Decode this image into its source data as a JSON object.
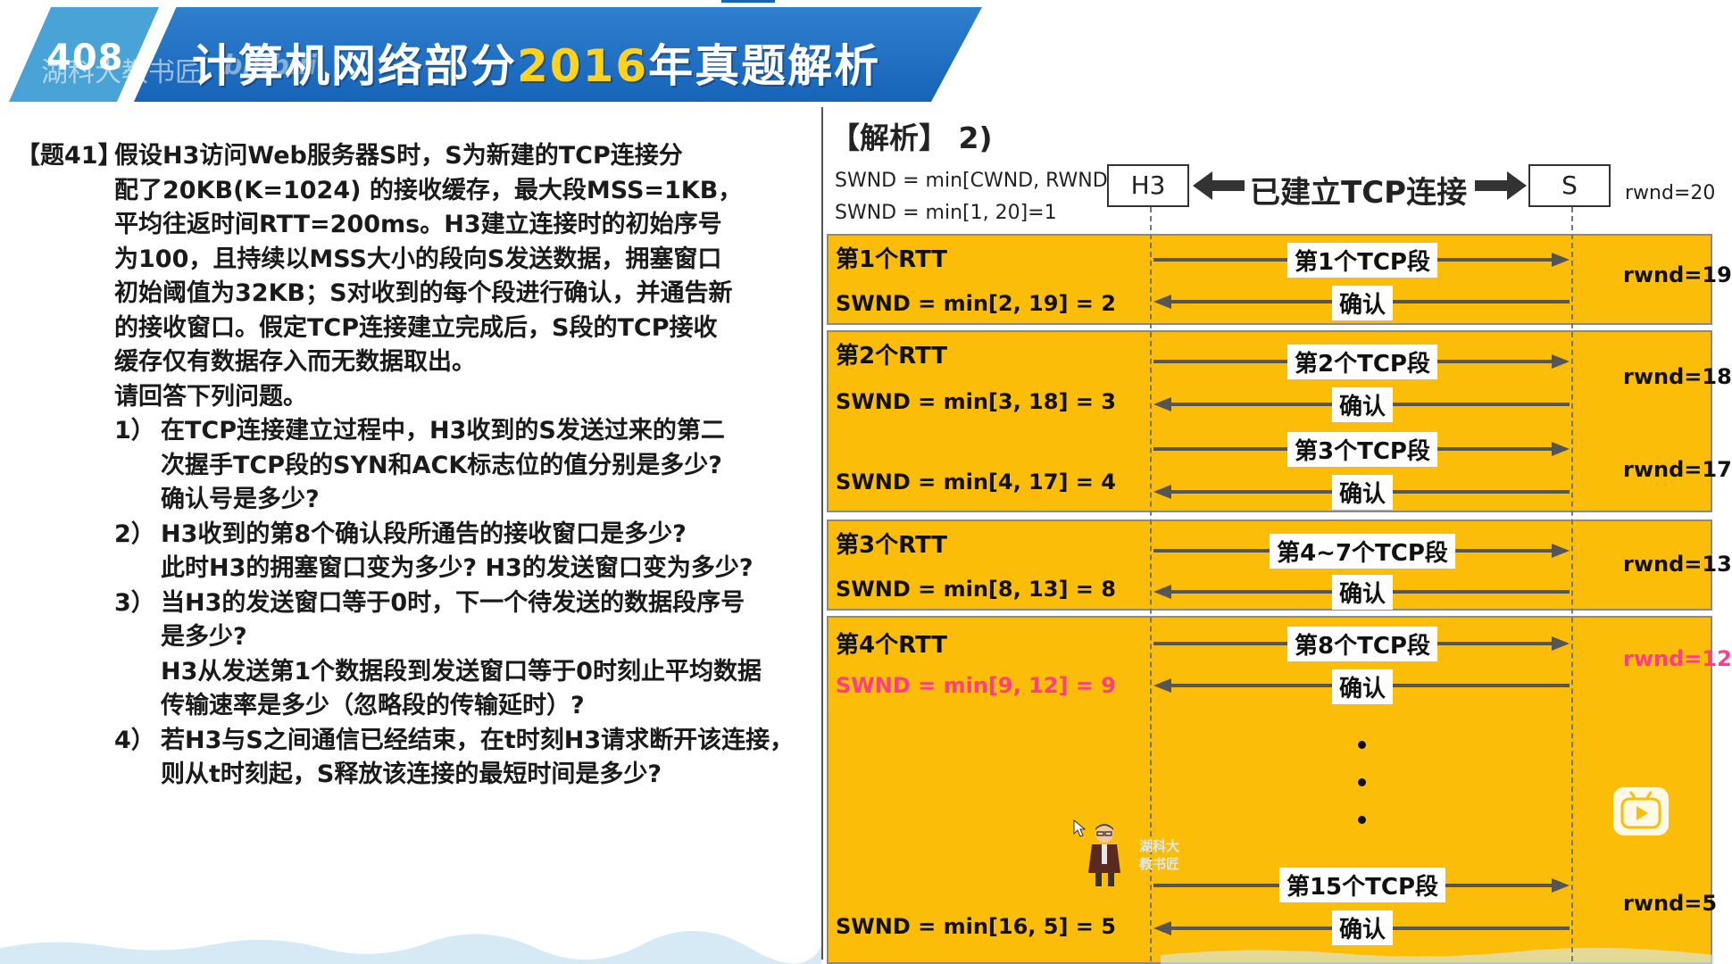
{
  "banner": {
    "code": "408",
    "watermark": "湖科大教书匠",
    "brand_overlay": "bilibili",
    "title_prefix": "计算机网络部分",
    "title_year": "2016",
    "title_suffix": "年真题解析",
    "colors": {
      "main": "#1664b8",
      "light": "#4aa3d6",
      "year": "#ffd21f"
    }
  },
  "question": {
    "tag": "【题41】",
    "intro_lines": [
      "假设H3访问Web服务器S时，S为新建的TCP连接分",
      "配了20KB(K=1024) 的接收缓存，最大段MSS=1KB，",
      "平均往返时间RTT=200ms。H3建立连接时的初始序号",
      "为100，且持续以MSS大小的段向S发送数据，拥塞窗口",
      "初始阈值为32KB；S对收到的每个段进行确认，并通告新",
      "的接收窗口。假定TCP连接建立完成后，S段的TCP接收",
      "缓存仅有数据存入而无数据取出。",
      "请回答下列问题。"
    ],
    "items": [
      {
        "num": "1）",
        "lines": [
          "在TCP连接建立过程中，H3收到的S发送过来的第二",
          "次握手TCP段的SYN和ACK标志位的值分别是多少?",
          "确认号是多少?"
        ]
      },
      {
        "num": "2）",
        "lines": [
          "H3收到的第8个确认段所通告的接收窗口是多少?",
          "此时H3的拥塞窗口变为多少? H3的发送窗口变为多少?"
        ]
      },
      {
        "num": "3）",
        "lines": [
          "当H3的发送窗口等于0时，下一个待发送的数据段序号",
          "是多少?",
          "H3从发送第1个数据段到发送窗口等于0时刻止平均数据",
          "传输速率是多少（忽略段的传输延时）?"
        ]
      },
      {
        "num": "4）",
        "lines": [
          "若H3与S之间通信已经结束，在t时刻H3请求断开该连接，",
          "则从t时刻起，S释放该连接的最短时间是多少?"
        ]
      }
    ]
  },
  "analysis": {
    "title": "【解析】  2)",
    "formula_general": "SWND = min[CWND, RWND]",
    "formula_initial": "SWND = min[1, 20]=1",
    "node_h3": "H3",
    "node_s": "S",
    "connection_label": "已建立TCP连接",
    "rwnd_initial": "rwnd=20",
    "block_color": "#fbbd07",
    "highlight_color": "#ff3d8a",
    "rtt_blocks": [
      {
        "label": "第1个RTT",
        "swnd": [
          "SWND = min[2, 19] = 2"
        ],
        "rwnd": [
          "rwnd=19"
        ],
        "messages": [
          {
            "text": "第1个TCP段",
            "dir": "right"
          },
          {
            "text": "确认",
            "dir": "left"
          }
        ]
      },
      {
        "label": "第2个RTT",
        "swnd": [
          "SWND = min[3, 18] = 3",
          "SWND = min[4, 17] = 4"
        ],
        "rwnd": [
          "rwnd=18",
          "rwnd=17"
        ],
        "messages": [
          {
            "text": "第2个TCP段",
            "dir": "right"
          },
          {
            "text": "确认",
            "dir": "left"
          },
          {
            "text": "第3个TCP段",
            "dir": "right"
          },
          {
            "text": "确认",
            "dir": "left"
          }
        ]
      },
      {
        "label": "第3个RTT",
        "swnd": [
          "SWND = min[8, 13] = 8"
        ],
        "rwnd": [
          "rwnd=13"
        ],
        "messages": [
          {
            "text": "第4~7个TCP段",
            "dir": "right"
          },
          {
            "text": "确认",
            "dir": "left"
          }
        ]
      },
      {
        "label": "第4个RTT",
        "swnd": [
          "SWND = min[9, 12] = 9",
          "SWND = min[16, 5] = 5"
        ],
        "rwnd": [
          "rwnd=12",
          "rwnd=5"
        ],
        "messages": [
          {
            "text": "第8个TCP段",
            "dir": "right"
          },
          {
            "text": "确认",
            "dir": "left"
          },
          {
            "text": "第15个TCP段",
            "dir": "right"
          },
          {
            "text": "确认",
            "dir": "left"
          }
        ],
        "ellipsis": "⋮"
      }
    ]
  },
  "mascot": {
    "name_line1": "湖科大",
    "name_line2": "教书匠",
    "icon": "teacher-avatar-icon"
  },
  "player": {
    "icon": "bilibili-play-icon"
  }
}
